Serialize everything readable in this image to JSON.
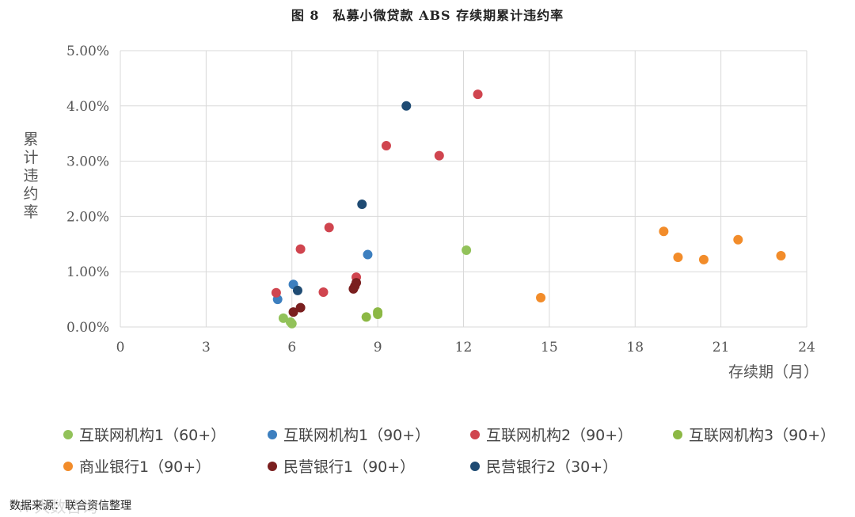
{
  "title": "图 8　私募小微贷款 ABS 存续期累计违约率",
  "source": "数据来源：联合资信整理",
  "watermark": "Yi 大数咨询",
  "chart_data": {
    "type": "scatter",
    "title": "图 8　私募小微贷款 ABS 存续期累计违约率",
    "xlabel": "存续期（月）",
    "ylabel": "累计违约率",
    "xlim": [
      0,
      24
    ],
    "ylim": [
      0,
      5
    ],
    "x_ticks": [
      0,
      3,
      6,
      9,
      12,
      15,
      18,
      21,
      24
    ],
    "y_ticks": [
      0,
      1,
      2,
      3,
      4,
      5
    ],
    "y_tick_labels": [
      "0.00%",
      "1.00%",
      "2.00%",
      "3.00%",
      "4.00%",
      "5.00%"
    ],
    "grid": true,
    "legend_position": "bottom",
    "series": [
      {
        "name": "互联网机构1（60+）",
        "color": "#92c25a",
        "points": [
          [
            5.7,
            0.16
          ],
          [
            5.95,
            0.09
          ],
          [
            6.0,
            0.06
          ],
          [
            12.1,
            1.39
          ]
        ]
      },
      {
        "name": "互联网机构1（90+）",
        "color": "#3d7fbf",
        "points": [
          [
            5.5,
            0.5
          ],
          [
            6.05,
            0.77
          ],
          [
            8.65,
            1.31
          ]
        ]
      },
      {
        "name": "互联网机构2（90+）",
        "color": "#d0454f",
        "points": [
          [
            5.45,
            0.62
          ],
          [
            6.3,
            1.41
          ],
          [
            7.1,
            0.63
          ],
          [
            7.3,
            1.8
          ],
          [
            8.25,
            0.9
          ],
          [
            9.3,
            3.28
          ],
          [
            11.15,
            3.1
          ],
          [
            12.5,
            4.21
          ]
        ]
      },
      {
        "name": "互联网机构3（90+）",
        "color": "#8cb845",
        "points": [
          [
            8.6,
            0.18
          ],
          [
            9.0,
            0.27
          ],
          [
            9.0,
            0.23
          ]
        ]
      },
      {
        "name": "商业银行1（90+）",
        "color": "#f28c2a",
        "points": [
          [
            14.7,
            0.53
          ],
          [
            19.0,
            1.73
          ],
          [
            19.5,
            1.26
          ],
          [
            20.4,
            1.22
          ],
          [
            21.6,
            1.58
          ],
          [
            23.1,
            1.29
          ]
        ]
      },
      {
        "name": "民营银行1（90+）",
        "color": "#7a1f1f",
        "points": [
          [
            6.05,
            0.27
          ],
          [
            6.3,
            0.35
          ],
          [
            8.15,
            0.69
          ],
          [
            8.2,
            0.74
          ],
          [
            8.25,
            0.8
          ]
        ]
      },
      {
        "name": "民营银行2（30+）",
        "color": "#1f4b73",
        "points": [
          [
            6.2,
            0.66
          ],
          [
            8.45,
            2.22
          ],
          [
            10.0,
            4.0
          ]
        ]
      }
    ]
  }
}
